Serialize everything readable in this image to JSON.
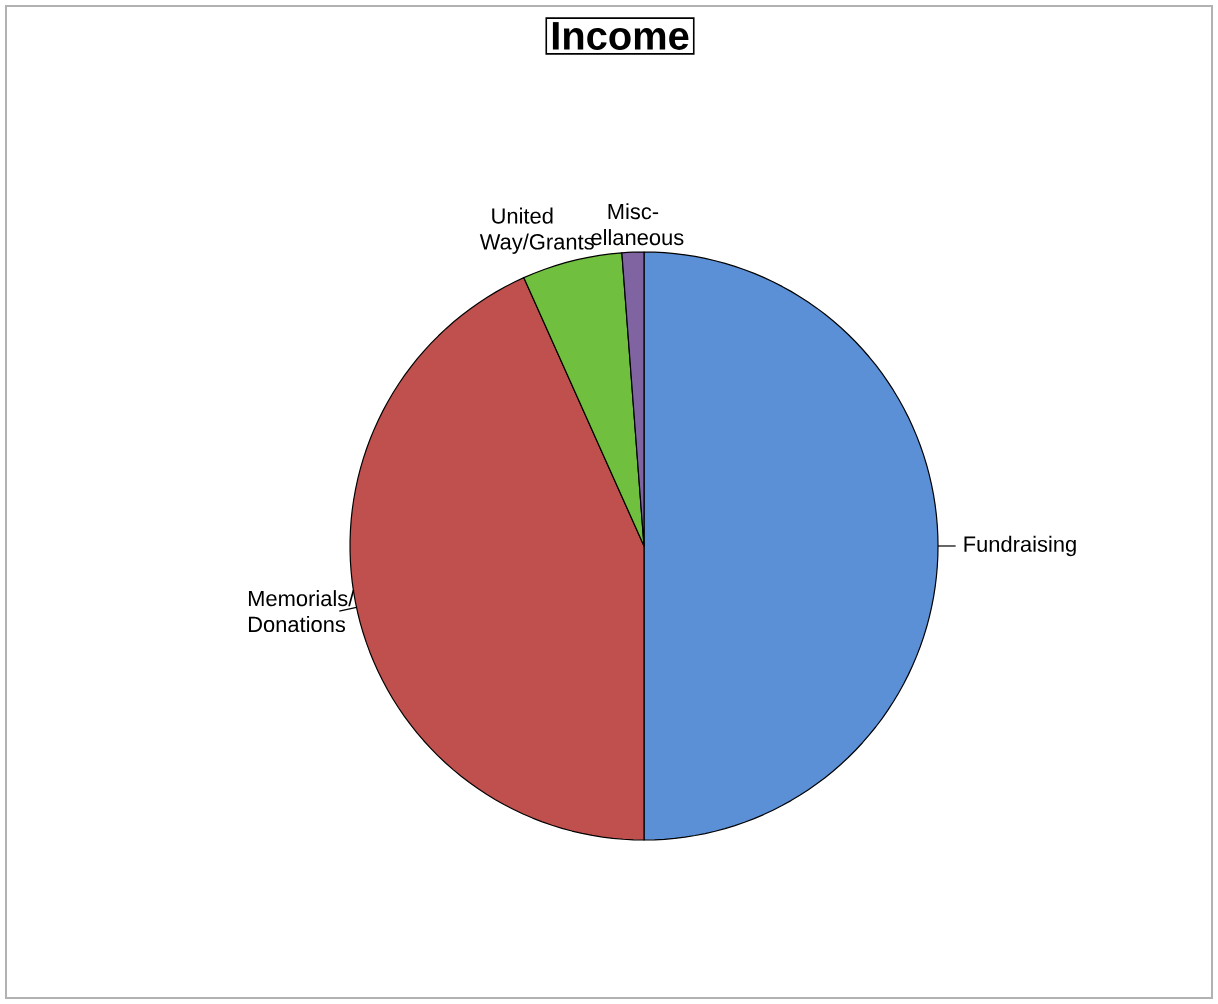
{
  "chart_data": {
    "type": "pie",
    "title": "Income",
    "categories": [
      "Fundraising",
      "Memorials/ Donations",
      "United Way/Grants",
      "Misc- ellaneous"
    ],
    "values": [
      50,
      43.3,
      5.5,
      1.2
    ],
    "colors": [
      "#5b8fd6",
      "#c0504d",
      "#70bf3f",
      "#8064a2"
    ]
  }
}
